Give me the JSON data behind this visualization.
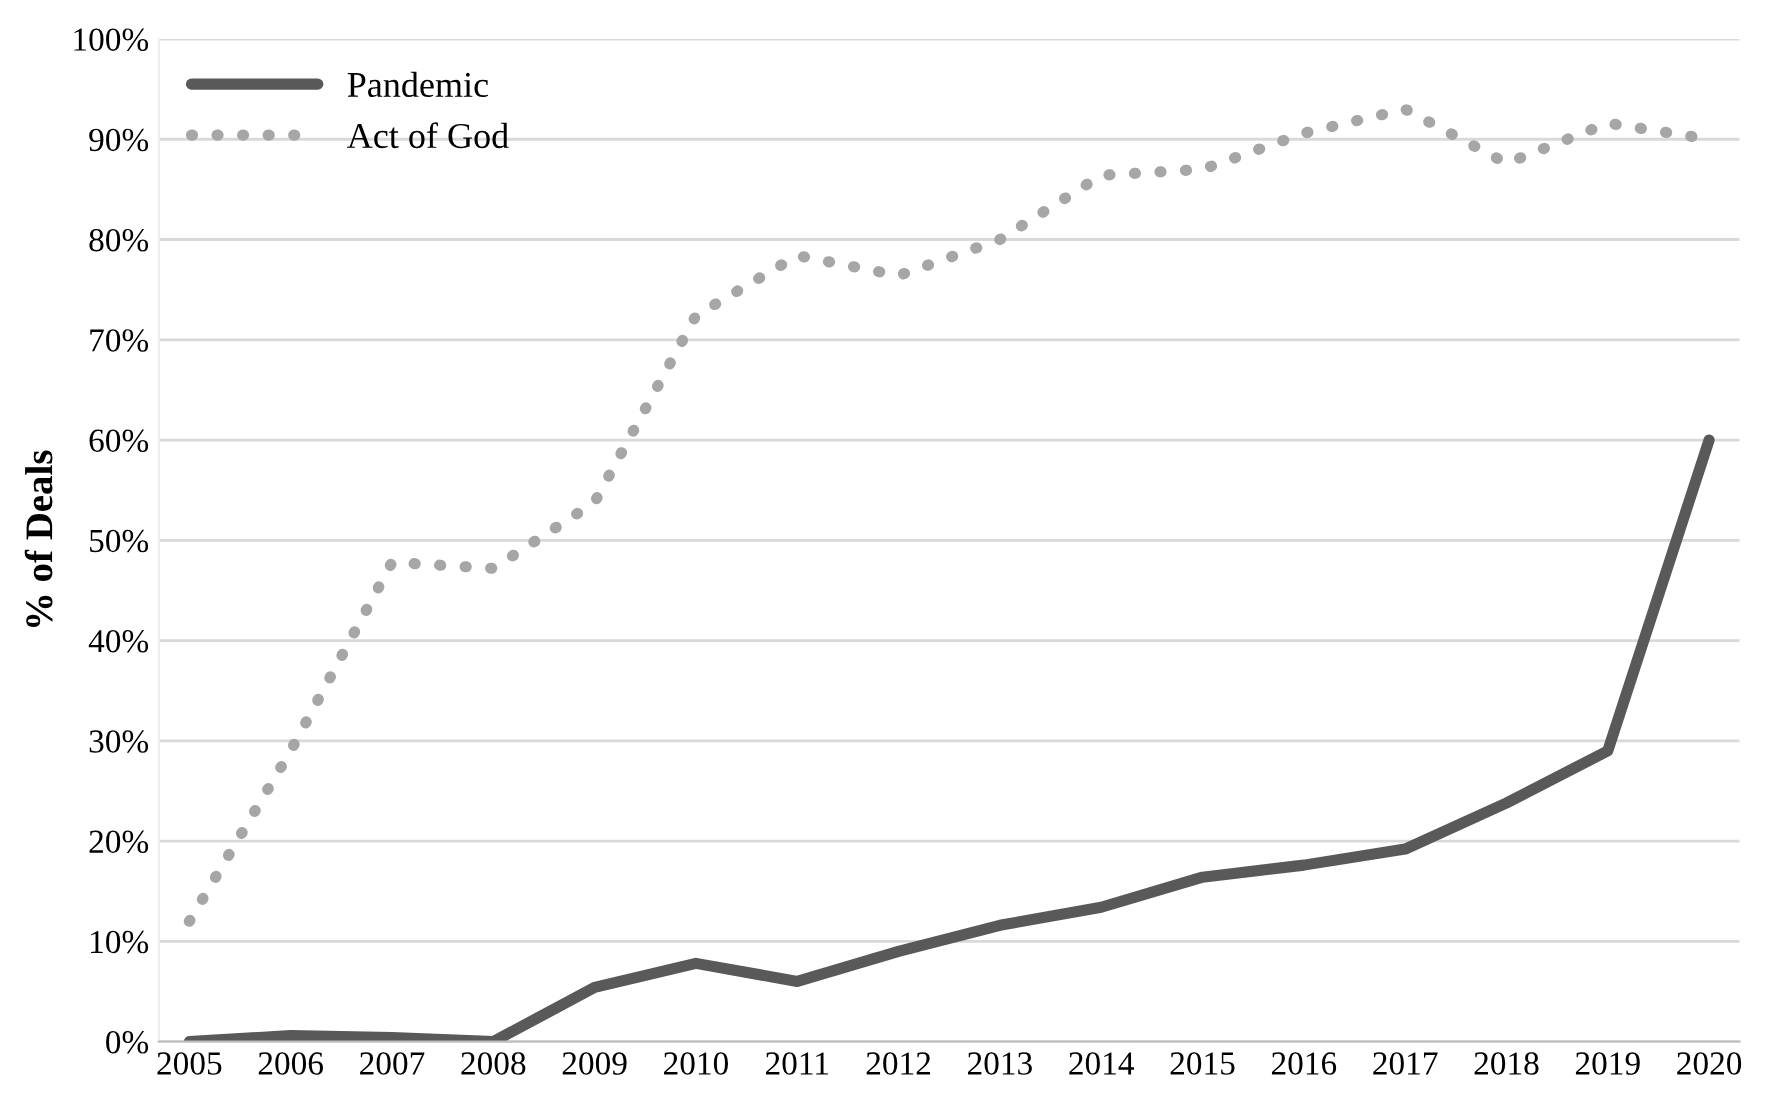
{
  "chart_data": {
    "type": "line",
    "ylabel": "% of Deals",
    "categories": [
      "2005",
      "2006",
      "2007",
      "2008",
      "2009",
      "2010",
      "2011",
      "2012",
      "2013",
      "2014",
      "2015",
      "2016",
      "2017",
      "2018",
      "2019",
      "2020"
    ],
    "series": [
      {
        "name": "Pandemic",
        "color": "#595959",
        "line_style": "solid",
        "values": [
          0,
          0.6,
          0.4,
          0,
          5.4,
          7.8,
          6,
          9,
          11.6,
          13.4,
          16.4,
          17.6,
          19.2,
          23.8,
          29,
          60
        ]
      },
      {
        "name": "Act of God",
        "color": "#a6a6a6",
        "line_style": "dotted",
        "values": [
          12,
          29,
          47.8,
          47.2,
          53.8,
          72.4,
          78.4,
          76.4,
          80,
          86.4,
          87,
          90.6,
          93,
          87.6,
          91.6,
          90
        ]
      }
    ],
    "ylim": [
      0,
      100
    ],
    "yticks": [
      {
        "value": 0,
        "label": "0%"
      },
      {
        "value": 10,
        "label": "10%"
      },
      {
        "value": 20,
        "label": "20%"
      },
      {
        "value": 30,
        "label": "30%"
      },
      {
        "value": 40,
        "label": "40%"
      },
      {
        "value": 50,
        "label": "50%"
      },
      {
        "value": 60,
        "label": "60%"
      },
      {
        "value": 70,
        "label": "70%"
      },
      {
        "value": 80,
        "label": "80%"
      },
      {
        "value": 90,
        "label": "90%"
      },
      {
        "value": 100,
        "label": "100%"
      }
    ],
    "grid": "y",
    "legend": "top left",
    "marker": "none"
  }
}
